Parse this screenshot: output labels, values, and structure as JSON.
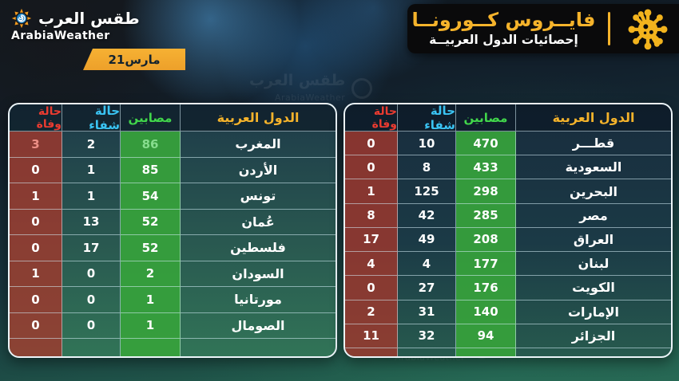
{
  "brand": {
    "logo_ar": "طقس العرب",
    "logo_en": "ArabiaWeather",
    "icon": "sun-swirl-icon"
  },
  "date_badge": {
    "label": "مارس21"
  },
  "banner": {
    "title": "فايــروس كــورونــا",
    "subtitle": "إحصائيات الدول العربيــة",
    "icon": "virus-icon"
  },
  "watermark": {
    "text_ar": "طقس العرب",
    "text_en": "ArabiaWeather"
  },
  "colors": {
    "accent_yellow": "#f5b32b",
    "accent_green": "#41d64b",
    "accent_cyan": "#3ac3f2",
    "accent_red": "#ea3b30",
    "infected_bg": "#38a23e",
    "deaths_bg": "#a5392c",
    "ribbon_orange": "#eda02a",
    "ribbon_orange_light": "#f6b133",
    "banner_black": "#0a0a0b",
    "virus_yellow": "#f2b31d",
    "date_text": "#14232e"
  },
  "chart_data": [
    {
      "type": "table",
      "position": "right",
      "columns": {
        "country": "الدول العربية",
        "infected": "مصابين",
        "recovered": "حالة شفاء",
        "deaths": "حالة وفاة"
      },
      "rows": [
        {
          "country": "قطـــر",
          "infected": 470,
          "recovered": 10,
          "deaths": 0
        },
        {
          "country": "السعودية",
          "infected": 433,
          "recovered": 8,
          "deaths": 0
        },
        {
          "country": "البحرين",
          "infected": 298,
          "recovered": 125,
          "deaths": 1
        },
        {
          "country": "مصر",
          "infected": 285,
          "recovered": 42,
          "deaths": 8
        },
        {
          "country": "العراق",
          "infected": 208,
          "recovered": 49,
          "deaths": 17
        },
        {
          "country": "لبنان",
          "infected": 177,
          "recovered": 4,
          "deaths": 4
        },
        {
          "country": "الكويت",
          "infected": 176,
          "recovered": 27,
          "deaths": 0
        },
        {
          "country": "الإمارات",
          "infected": 140,
          "recovered": 31,
          "deaths": 2
        },
        {
          "country": "الجزائر",
          "infected": 94,
          "recovered": 32,
          "deaths": 11
        }
      ]
    },
    {
      "type": "table",
      "position": "left",
      "columns": {
        "country": "الدول العربية",
        "infected": "مصابين",
        "recovered": "حالة شفاء",
        "deaths": "حالة وفاة"
      },
      "rows": [
        {
          "country": "المغرب",
          "infected": 86,
          "recovered": 2,
          "deaths": 3,
          "infected_color": "#87dd8e",
          "deaths_color": "#ec8f86"
        },
        {
          "country": "الأردن",
          "infected": 85,
          "recovered": 1,
          "deaths": 0
        },
        {
          "country": "تونس",
          "infected": 54,
          "recovered": 1,
          "deaths": 1
        },
        {
          "country": "عُمان",
          "infected": 52,
          "recovered": 13,
          "deaths": 0
        },
        {
          "country": "فلسطين",
          "infected": 52,
          "recovered": 17,
          "deaths": 0
        },
        {
          "country": "السودان",
          "infected": 2,
          "recovered": 0,
          "deaths": 1
        },
        {
          "country": "مورتانيا",
          "infected": 1,
          "recovered": 0,
          "deaths": 0
        },
        {
          "country": "الصومال",
          "infected": 1,
          "recovered": 0,
          "deaths": 0
        }
      ]
    }
  ]
}
